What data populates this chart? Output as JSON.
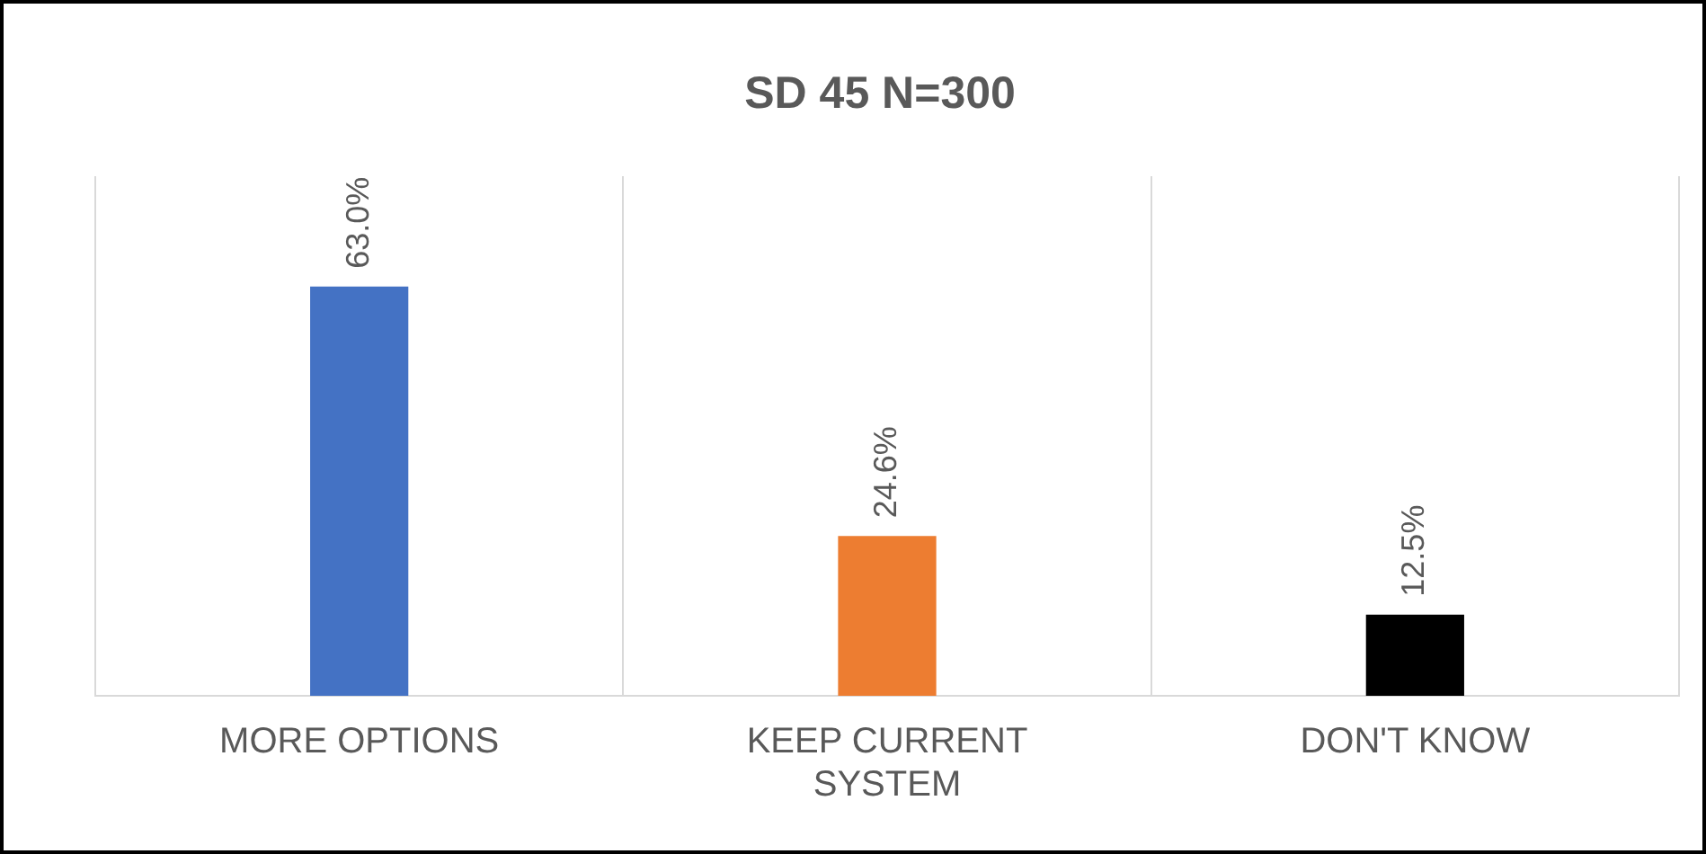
{
  "chart_data": {
    "type": "bar",
    "title": "SD 45 N=300",
    "categories": [
      "MORE OPTIONS",
      "KEEP CURRENT SYSTEM",
      "DON'T KNOW"
    ],
    "values": [
      63.0,
      24.6,
      12.5
    ],
    "colors": [
      "#4472c4",
      "#ed7d31",
      "#000000"
    ],
    "value_labels": [
      "63.0%",
      "24.6%",
      "12.5%"
    ],
    "relative": false,
    "ylim": [
      0,
      80
    ],
    "grid": "x",
    "legend": false
  }
}
